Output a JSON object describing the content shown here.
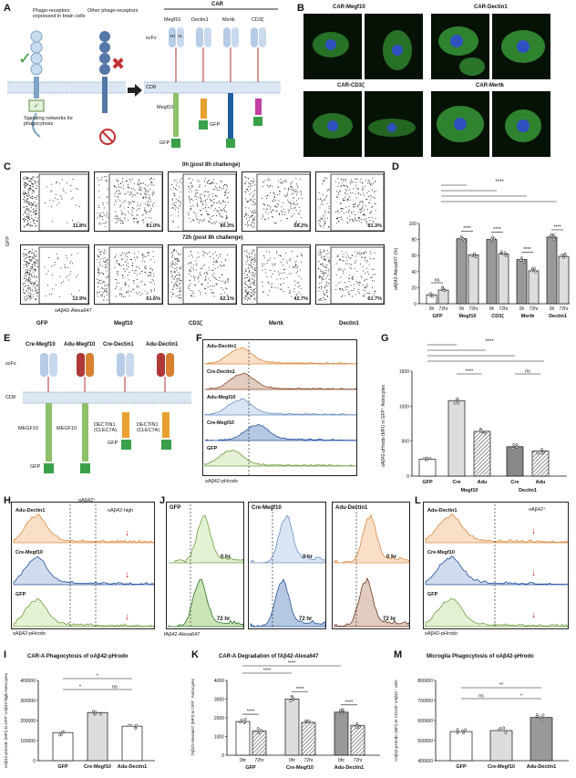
{
  "panels": {
    "A": {
      "label": "A",
      "left_title": "Phago-receptors expressed in brain cells",
      "right_title": "Other phago-receptors",
      "car_title": "CAR",
      "receptors": [
        "Megf10",
        "Dectin1",
        "Mertk",
        "CD3ζ"
      ],
      "scfv": "scFv",
      "vh": "VH",
      "vl": "VL",
      "cd8": "CD8",
      "gfp": "GFP",
      "signaling": "Signaling networks for phagocytosis"
    },
    "B": {
      "label": "B",
      "titles": [
        "CAR-Megf10",
        "CAR-Dectin1",
        "CAR-CD3ζ",
        "CAR-Mertk"
      ]
    },
    "C": {
      "label": "C",
      "time1": "0h (post 8h challenge)",
      "time2": "72h (post 8h challenge)",
      "yaxis": "GFP",
      "xaxis": "oAβ42-Alexa647",
      "groups": [
        "GFP",
        "Megf10",
        "CD3ζ",
        "Mertk",
        "Dectin1"
      ],
      "row1": [
        "11.8%",
        "81.0%",
        "80.3%",
        "58.2%",
        "81.3%"
      ],
      "row2": [
        "12.9%",
        "61.6%",
        "62.1%",
        "42.7%",
        "61.7%"
      ]
    },
    "D": {
      "label": "D",
      "ylabel": "oAβ42-Alexa647 (%)",
      "yticks": [
        "0",
        "20",
        "40",
        "60",
        "80",
        "100"
      ],
      "groups": [
        "GFP",
        "Megf10",
        "CD3ζ",
        "Mertk",
        "Dectin1"
      ],
      "sub": [
        "0h",
        "72hr"
      ],
      "ns": "ns",
      "sig": "****"
    },
    "E": {
      "label": "E",
      "constructs": [
        "Cre-Megf10",
        "Adu-Megf10",
        "Cre-Dectin1",
        "Adu-Dectin1"
      ],
      "scfv": "scFv",
      "cd8": "CD8",
      "megf10": "MEGF10",
      "dectin": "DECTIN1 (CLEC7A)",
      "gfp": "GFP"
    },
    "F": {
      "label": "F",
      "tracks": [
        "Adu-Dectin1",
        "Cre-Dectin1",
        "Adu-Megf10",
        "Cre-Megf10",
        "GFP"
      ],
      "xlabel": "oAβ42-pHrodo"
    },
    "G": {
      "label": "G",
      "ylabel": "oAβ42-pHrodo (MFI) in GFP⁺ Astrocytes",
      "yticks": [
        "0",
        "500",
        "1000",
        "1500"
      ],
      "groups": [
        "GFP",
        "Cre",
        "Adu",
        "Cre",
        "Adu"
      ],
      "group_labels": [
        "Megf10",
        "Dectin1"
      ],
      "ns": "ns",
      "sig": "****"
    },
    "H": {
      "label": "H",
      "tracks": [
        "Adu-Dectin1",
        "Cre-Megf10",
        "GFP"
      ],
      "gate1": "oAβ42⁺",
      "gate2": "oAβ42-high",
      "xlabel": "oAβ42-pHrodo"
    },
    "J": {
      "label": "J",
      "cols": [
        "GFP",
        "Cre-Megf10",
        "Adu-Dectin1"
      ],
      "times": [
        "0 hr",
        "72 hr"
      ],
      "xlabel": "fAβ42-Alexa647"
    },
    "L": {
      "label": "L",
      "tracks": [
        "Adu-Dectin1",
        "Cre-Megf10",
        "GFP"
      ],
      "gate": "oAβ42⁺",
      "xlabel": "oAβ42-pHrodo"
    },
    "I": {
      "label": "I",
      "title": "CAR-A Phagocytosis of oAβ42-pHrodo",
      "ylabel": "oAβ42-pHrodo (MFI) in GFP⁺oAβ42-high Astrocytes",
      "yticks": [
        "0",
        "100000",
        "200000",
        "300000",
        "400000"
      ],
      "groups": [
        "GFP",
        "Cre-Megf10",
        "Adu-Dectin1"
      ],
      "sig1": "*",
      "sig2": "*",
      "ns": "ns"
    },
    "K": {
      "label": "K",
      "title": "CAR-A Degradation of fAβ42-Alexa647",
      "ylabel": "fAβ42-Alexa647 (MFI) in GFP⁺ Astrocytes",
      "yticks": [
        "0",
        "1000",
        "2000",
        "3000",
        "4000"
      ],
      "groups": [
        "GFP",
        "Cre-Megf10",
        "Adu-Dectin1"
      ],
      "sub": [
        "0hr",
        "72hr"
      ],
      "sig": "****"
    },
    "M": {
      "label": "M",
      "title": "Microglia Phagocytosis of oAβ42-pHrodo",
      "ylabel": "oAβ42-pHrodo (MFI) in CD11b⁺oAβ42⁺ cells",
      "yticks": [
        "400000",
        "500000",
        "600000",
        "700000",
        "800000"
      ],
      "groups": [
        "GFP",
        "Cre-Megf10",
        "Adu-Dectin1"
      ],
      "ns": "ns",
      "sig1": "**",
      "sig2": "*"
    }
  },
  "chart_data": [
    {
      "type": "bar",
      "id": "D",
      "title": "",
      "ylabel": "oAβ42-Alexa647 (%)",
      "ylim": [
        0,
        100
      ],
      "categories": [
        "GFP",
        "Megf10",
        "CD3ζ",
        "Mertk",
        "Dectin1"
      ],
      "series": [
        {
          "name": "0h",
          "values": [
            11,
            81,
            80,
            55,
            83
          ]
        },
        {
          "name": "72hr",
          "values": [
            17,
            61,
            62,
            41,
            59
          ]
        }
      ]
    },
    {
      "type": "bar",
      "id": "G",
      "ylabel": "oAβ42-pHrodo (MFI) in GFP⁺ Astrocytes",
      "ylim": [
        0,
        1500
      ],
      "categories": [
        "GFP",
        "Cre-Megf10",
        "Adu-Megf10",
        "Cre-Dectin1",
        "Adu-Dectin1"
      ],
      "values": [
        240,
        1080,
        640,
        420,
        360
      ]
    },
    {
      "type": "bar",
      "id": "I",
      "title": "CAR-A Phagocytosis of oAβ42-pHrodo",
      "ylim": [
        0,
        400000
      ],
      "categories": [
        "GFP",
        "Cre-Megf10",
        "Adu-Dectin1"
      ],
      "values": [
        140000,
        240000,
        172000
      ]
    },
    {
      "type": "bar",
      "id": "K",
      "title": "CAR-A Degradation of fAβ42-Alexa647",
      "ylim": [
        0,
        4000
      ],
      "categories": [
        "GFP",
        "Cre-Megf10",
        "Adu-Dectin1"
      ],
      "series": [
        {
          "name": "0hr",
          "values": [
            1800,
            3000,
            2300
          ]
        },
        {
          "name": "72hr",
          "values": [
            1300,
            1750,
            1600
          ]
        }
      ]
    },
    {
      "type": "bar",
      "id": "M",
      "title": "Microglia Phagocytosis of oAβ42-pHrodo",
      "ylim": [
        400000,
        800000
      ],
      "categories": [
        "GFP",
        "Cre-Megf10",
        "Adu-Dectin1"
      ],
      "values": [
        545000,
        550000,
        615000
      ]
    }
  ]
}
